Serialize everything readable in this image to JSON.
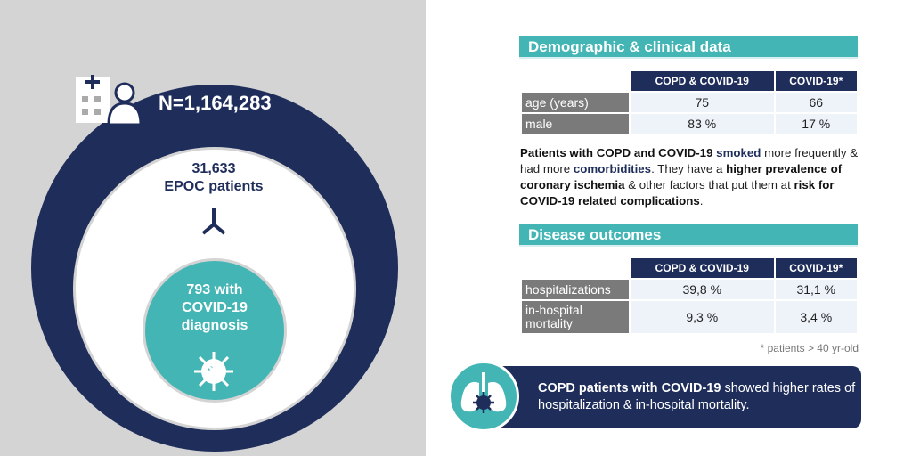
{
  "left": {
    "total": "N=1,164,283",
    "epoc_count": "31,633",
    "epoc_label": "EPOC patients",
    "covid_lines": [
      "793 with",
      "COVID-19",
      "diagnosis"
    ]
  },
  "demographic": {
    "title": "Demographic & clinical data",
    "columns": [
      "COPD & COVID-19",
      "COVID-19*"
    ],
    "rows": [
      {
        "label": "age (years)",
        "values": [
          "75",
          "66"
        ]
      },
      {
        "label": "male",
        "values": [
          "83 %",
          "17 %"
        ]
      }
    ]
  },
  "summary": {
    "parts": [
      "Patients with COPD and COVID-19 ",
      "smoked",
      " more frequently & had more ",
      "comorbidities",
      ". They have a ",
      "higher prevalence of coronary ischemia",
      " & other factors that put them at ",
      "risk for COVID-19 related complications",
      "."
    ]
  },
  "outcomes": {
    "title": "Disease outcomes",
    "columns": [
      "COPD & COVID-19",
      "COVID-19*"
    ],
    "rows": [
      {
        "label": "hospitalizations",
        "values": [
          "39,8 %",
          "31,1 %"
        ]
      },
      {
        "label": "in-hospital mortality",
        "values": [
          "9,3 %",
          "3,4 %"
        ]
      }
    ]
  },
  "footnote": "* patients > 40 yr-old",
  "conclusion": {
    "bold": "COPD patients with COVID-19",
    "rest": " showed higher rates of hospitalization & in-hospital mortality."
  },
  "colors": {
    "navy": "#1f2d5a",
    "teal": "#44b5b5",
    "gray": "#d4d4d4"
  }
}
